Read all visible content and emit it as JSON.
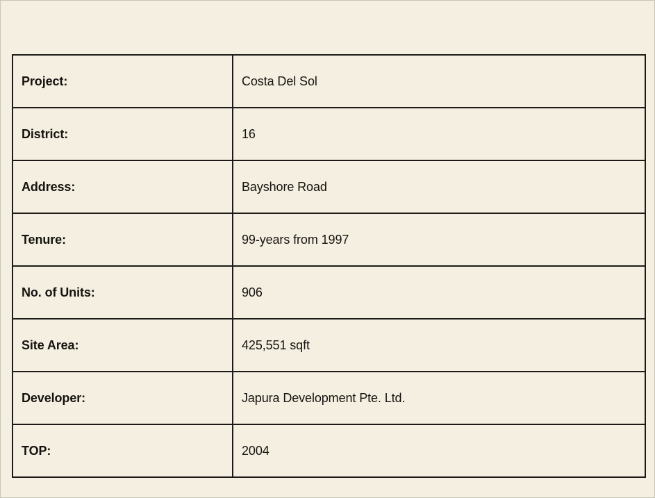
{
  "page": {
    "background_color": "#f4efe0",
    "table_border_color": "#1d1b18",
    "text_color": "#15130f"
  },
  "table": {
    "rows": [
      {
        "label": "Project:",
        "value": "Costa Del Sol"
      },
      {
        "label": "District:",
        "value": "16"
      },
      {
        "label": "Address:",
        "value": "Bayshore Road"
      },
      {
        "label": "Tenure:",
        "value": "99-years from 1997"
      },
      {
        "label": "No. of Units:",
        "value": "906"
      },
      {
        "label": "Site Area:",
        "value": "425,551 sqft"
      },
      {
        "label": "Developer:",
        "value": "Japura Development Pte. Ltd."
      },
      {
        "label": "TOP:",
        "value": "2004"
      }
    ]
  }
}
